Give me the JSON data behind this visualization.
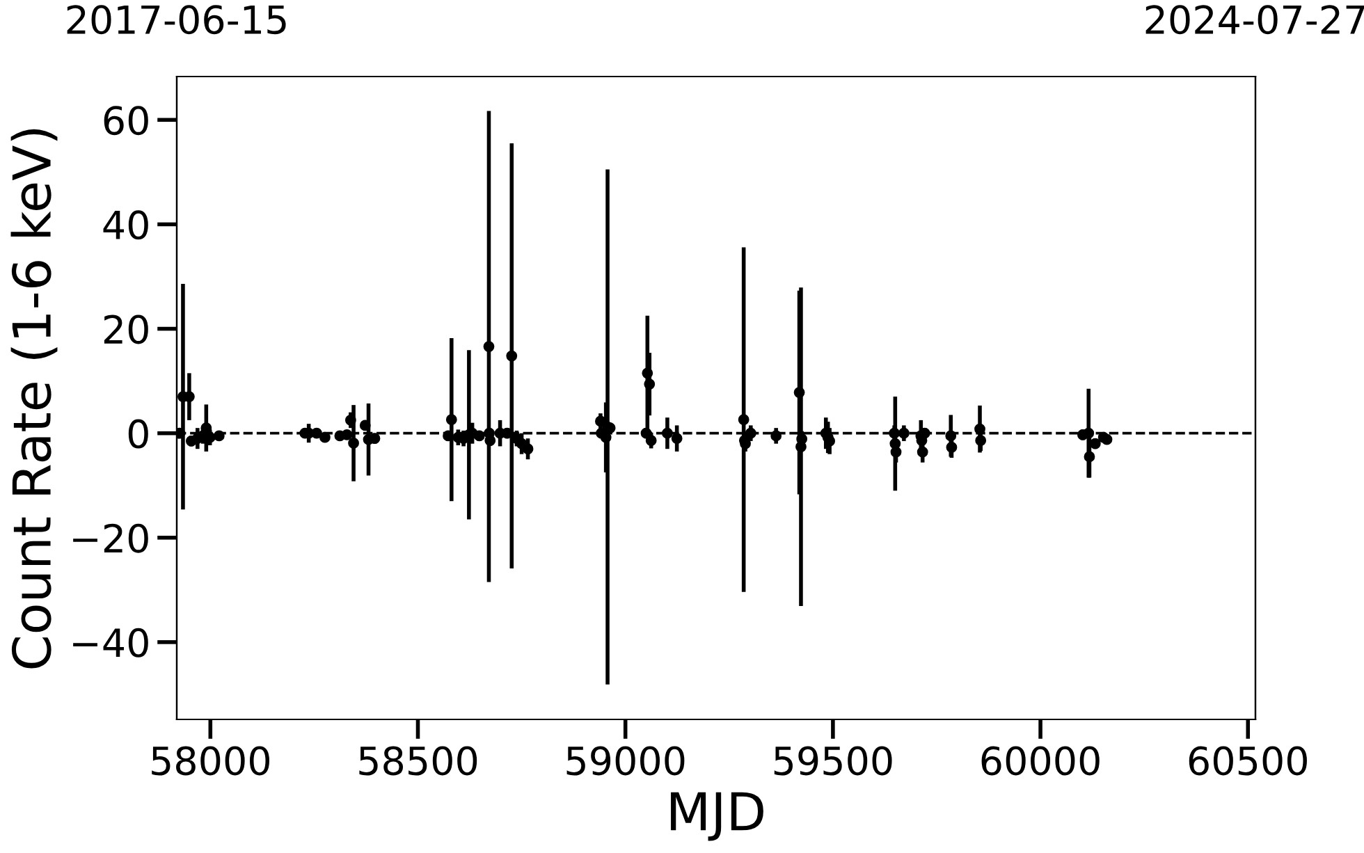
{
  "chart_data": {
    "type": "scatter",
    "xlabel": "MJD",
    "ylabel": "Count Rate (1-6 keV)",
    "x2lim": [
      "2017-06-15",
      "2024-07-27"
    ],
    "x2ticks": [
      "2017-06-15",
      "2024-07-27"
    ],
    "xlim": [
      57919,
      60518
    ],
    "xticks": [
      58000,
      58500,
      59000,
      59500,
      60000,
      60500
    ],
    "ylim": [
      -54.8,
      68.3
    ],
    "yticks": [
      {
        "value": -40,
        "label": "−40"
      },
      {
        "value": -20,
        "label": "−20"
      },
      0,
      20,
      40,
      60
    ],
    "grid": false,
    "marker": "circle",
    "legend": false,
    "ref_lines": [
      {
        "axis": "y",
        "value": 0,
        "color": "#000000",
        "line_style": "dashed"
      }
    ],
    "series": [
      {
        "color": "#000000",
        "x": [
          57926,
          57934,
          57949,
          57954,
          57969,
          57982,
          57990,
          57999,
          58021,
          58228,
          58237,
          58256,
          58276,
          58312,
          58329,
          58338,
          58345,
          58373,
          58381,
          58396,
          58573,
          58581,
          58597,
          58610,
          58623,
          58631,
          58648,
          58671,
          58672,
          58674,
          58698,
          58715,
          58726,
          58738,
          58750,
          58765,
          58940,
          58942,
          58953,
          58957,
          58963,
          59050,
          59053,
          59058,
          59062,
          59101,
          59124,
          59285,
          59287,
          59289,
          59302,
          59363,
          59419,
          59423,
          59425,
          59483,
          59488,
          59492,
          59648,
          59650,
          59652,
          59671,
          59712,
          59714,
          59716,
          59721,
          59784,
          59786,
          59854,
          59856,
          60102,
          60116,
          60118,
          60132,
          60152,
          60160
        ],
        "values": [
          0,
          7,
          7,
          -1.5,
          -1,
          -0.5,
          1,
          -0.8,
          -0.5,
          0,
          0,
          0,
          -0.8,
          -0.5,
          -0.3,
          2.5,
          -1.9,
          1.5,
          -1.2,
          -1,
          -0.5,
          2.6,
          -0.8,
          -1,
          -0.3,
          0,
          -0.5,
          16.6,
          0,
          -1.4,
          0,
          0,
          14.8,
          -1,
          -2,
          -3,
          2.3,
          0,
          -0.8,
          1.2,
          1,
          0,
          11.5,
          9.4,
          -1.4,
          0,
          -1,
          2.6,
          -1.4,
          -2,
          0,
          -0.5,
          7.8,
          -2.6,
          -1.1,
          0,
          -0.8,
          -1.5,
          0,
          -2,
          -3.6,
          0,
          -0.5,
          -1.4,
          -3.6,
          0,
          -0.5,
          -2.7,
          0.8,
          -1.4,
          -0.3,
          0,
          -4.5,
          -2,
          -0.8,
          -1.2
        ],
        "errors": [
          1,
          21.6,
          4.5,
          1,
          2,
          1.5,
          4.5,
          1.5,
          0.5,
          0.5,
          1.8,
          0.5,
          0.5,
          0.5,
          0.8,
          1.5,
          7.3,
          1,
          6.9,
          1,
          1,
          15.6,
          1.5,
          1.5,
          16.2,
          2,
          1,
          45.1,
          1,
          1,
          2.5,
          1,
          40.7,
          1.5,
          2,
          2,
          1.5,
          1,
          6.7,
          49.3,
          1,
          1,
          11,
          6,
          1.5,
          3,
          2.5,
          33,
          1.5,
          1.5,
          1.5,
          1.5,
          19.5,
          30.5,
          1.5,
          3,
          3,
          2.5,
          1.5,
          9,
          2,
          1.5,
          3,
          2,
          2,
          1,
          4,
          2,
          4.5,
          2,
          1,
          8.5,
          4,
          1,
          0.5,
          0.5
        ]
      }
    ]
  }
}
